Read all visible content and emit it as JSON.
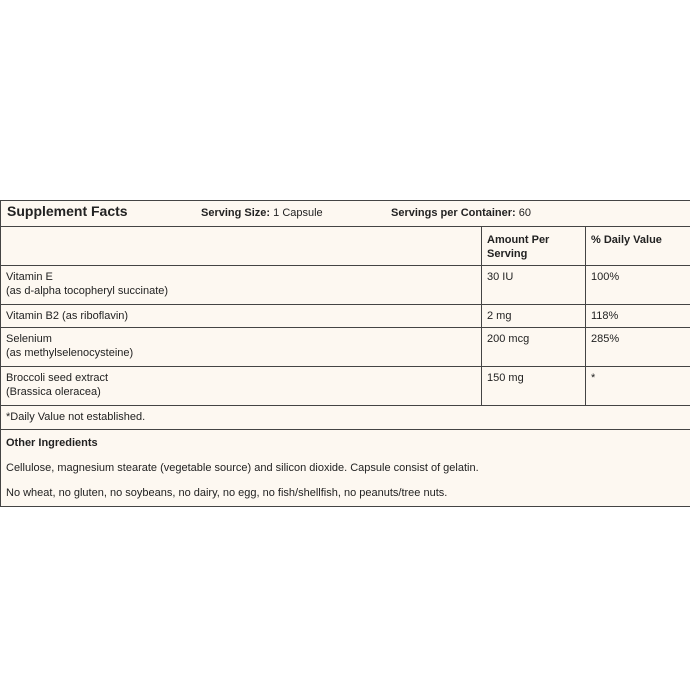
{
  "header": {
    "title": "Supplement Facts",
    "serving_size_label": "Serving Size:",
    "serving_size": "1 Capsule",
    "servings_label": "Servings per Container:",
    "servings": "60"
  },
  "columns": [
    "Amount Per Serving",
    "% Daily Value"
  ],
  "rows": [
    {
      "name": "Vitamin E",
      "detail": "(as d-alpha tocopheryl succinate)",
      "amount": "30 IU",
      "dv": "100%"
    },
    {
      "name": "Vitamin B2 (as riboflavin)",
      "amount": "2 mg",
      "dv": "118%"
    },
    {
      "name": "Selenium",
      "detail": "(as methylselenocysteine)",
      "amount": "200 mcg",
      "dv": "285%"
    },
    {
      "name": "Broccoli seed extract",
      "detail": "(Brassica oleracea)",
      "amount": "150 mg",
      "dv": "*"
    }
  ],
  "footnote": "*Daily Value not established.",
  "other_ingredients": {
    "title": "Other Ingredients",
    "paragraphs": [
      "Cellulose, magnesium stearate (vegetable source) and silicon dioxide. Capsule consist of gelatin.",
      "No wheat, no gluten, no soybeans, no dairy, no egg, no fish/shellfish, no peanuts/tree nuts."
    ]
  }
}
